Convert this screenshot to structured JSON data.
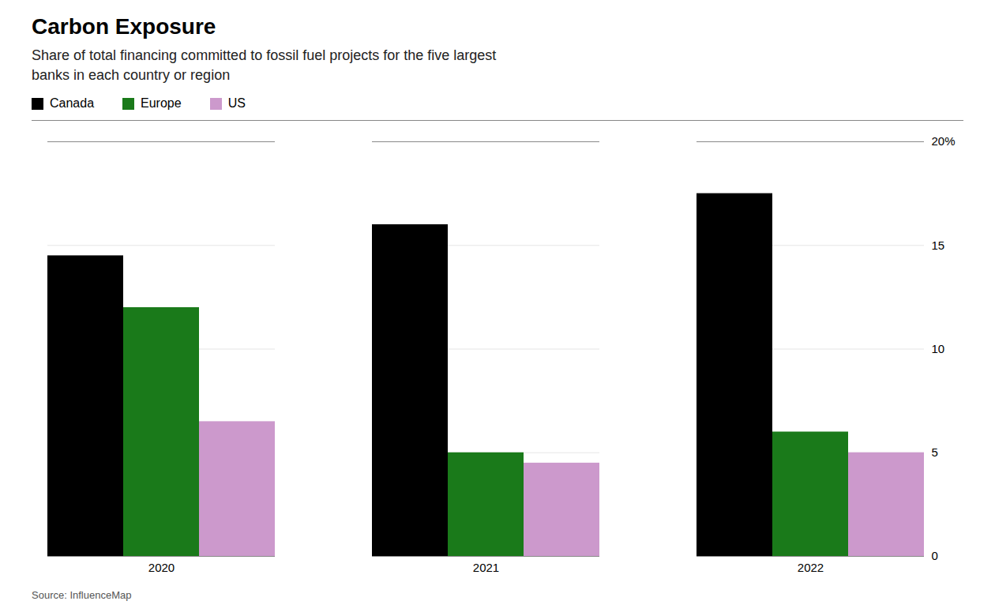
{
  "chart_data": {
    "type": "bar",
    "title": "Carbon Exposure",
    "subtitle": [
      "Share of total financing committed to fossil fuel projects for the five largest",
      "banks in each country or region"
    ],
    "source": "Source: InfluenceMap",
    "categories": [
      "2020",
      "2021",
      "2022"
    ],
    "series": [
      {
        "name": "Canada",
        "color": "#000000",
        "values": [
          14.5,
          16.0,
          17.5
        ]
      },
      {
        "name": "Europe",
        "color": "#1a7a1a",
        "values": [
          12.0,
          5.0,
          6.0
        ]
      },
      {
        "name": "US",
        "color": "#cc99cc",
        "values": [
          6.5,
          4.5,
          5.0
        ]
      }
    ],
    "ylim": [
      0,
      20
    ],
    "yticks": [
      0,
      5,
      10,
      15,
      {
        "value": 20,
        "label": "20%"
      }
    ],
    "grid": true,
    "legend": "top"
  }
}
